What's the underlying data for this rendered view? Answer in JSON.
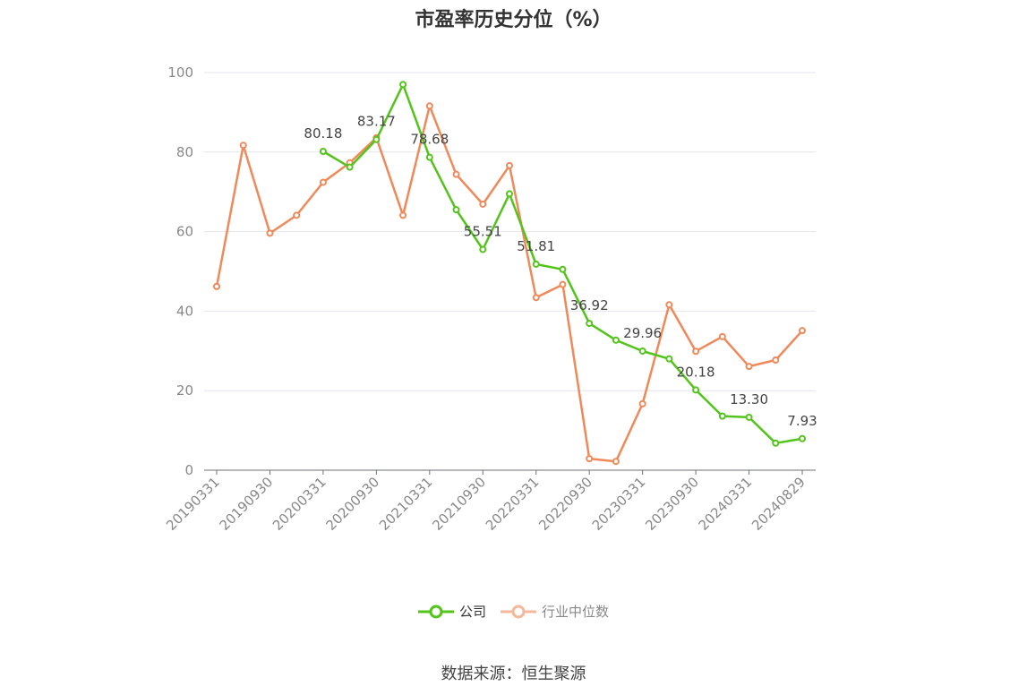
{
  "chart_data": {
    "type": "line",
    "title": "市盈率历史分位（%）",
    "xlabel": "",
    "ylabel": "",
    "ylim": [
      0,
      100
    ],
    "yticks": [
      0,
      20,
      40,
      60,
      80,
      100
    ],
    "x": [
      "20190331",
      "20190630",
      "20190930",
      "20191231",
      "20200331",
      "20200630",
      "20200930",
      "20201231",
      "20210331",
      "20210630",
      "20210930",
      "20211231",
      "20220331",
      "20220630",
      "20220930",
      "20221231",
      "20230331",
      "20230630",
      "20230930",
      "20231231",
      "20240331",
      "20240630",
      "20240829"
    ],
    "xtick_labels": [
      "20190331",
      "20190930",
      "20200331",
      "20200930",
      "20210331",
      "20210930",
      "20220331",
      "20220930",
      "20230331",
      "20230930",
      "20240331",
      "20240829"
    ],
    "series": [
      {
        "name": "公司",
        "color": "#52c41a",
        "values": [
          null,
          null,
          null,
          null,
          80.18,
          76.2,
          83.17,
          97.0,
          78.68,
          65.5,
          55.51,
          69.5,
          51.81,
          50.5,
          36.92,
          32.7,
          29.96,
          28.0,
          20.18,
          13.6,
          13.3,
          6.8,
          7.93
        ],
        "labels": [
          null,
          null,
          null,
          null,
          "80.18",
          null,
          "83.17",
          null,
          "78.68",
          null,
          "55.51",
          null,
          "51.81",
          null,
          "36.92",
          null,
          "29.96",
          null,
          "20.18",
          null,
          "13.30",
          null,
          "7.93"
        ]
      },
      {
        "name": "行业中位数",
        "color": "#f0895a",
        "values": [
          46.2,
          81.7,
          59.6,
          64.1,
          72.4,
          77.3,
          83.6,
          64.1,
          91.6,
          74.4,
          66.9,
          76.6,
          43.4,
          46.7,
          2.9,
          2.2,
          16.7,
          41.6,
          29.9,
          33.6,
          26.1,
          27.7,
          35.1
        ]
      }
    ],
    "legend_position": "bottom-center",
    "grid": true,
    "source_text": "数据来源：恒生聚源"
  }
}
